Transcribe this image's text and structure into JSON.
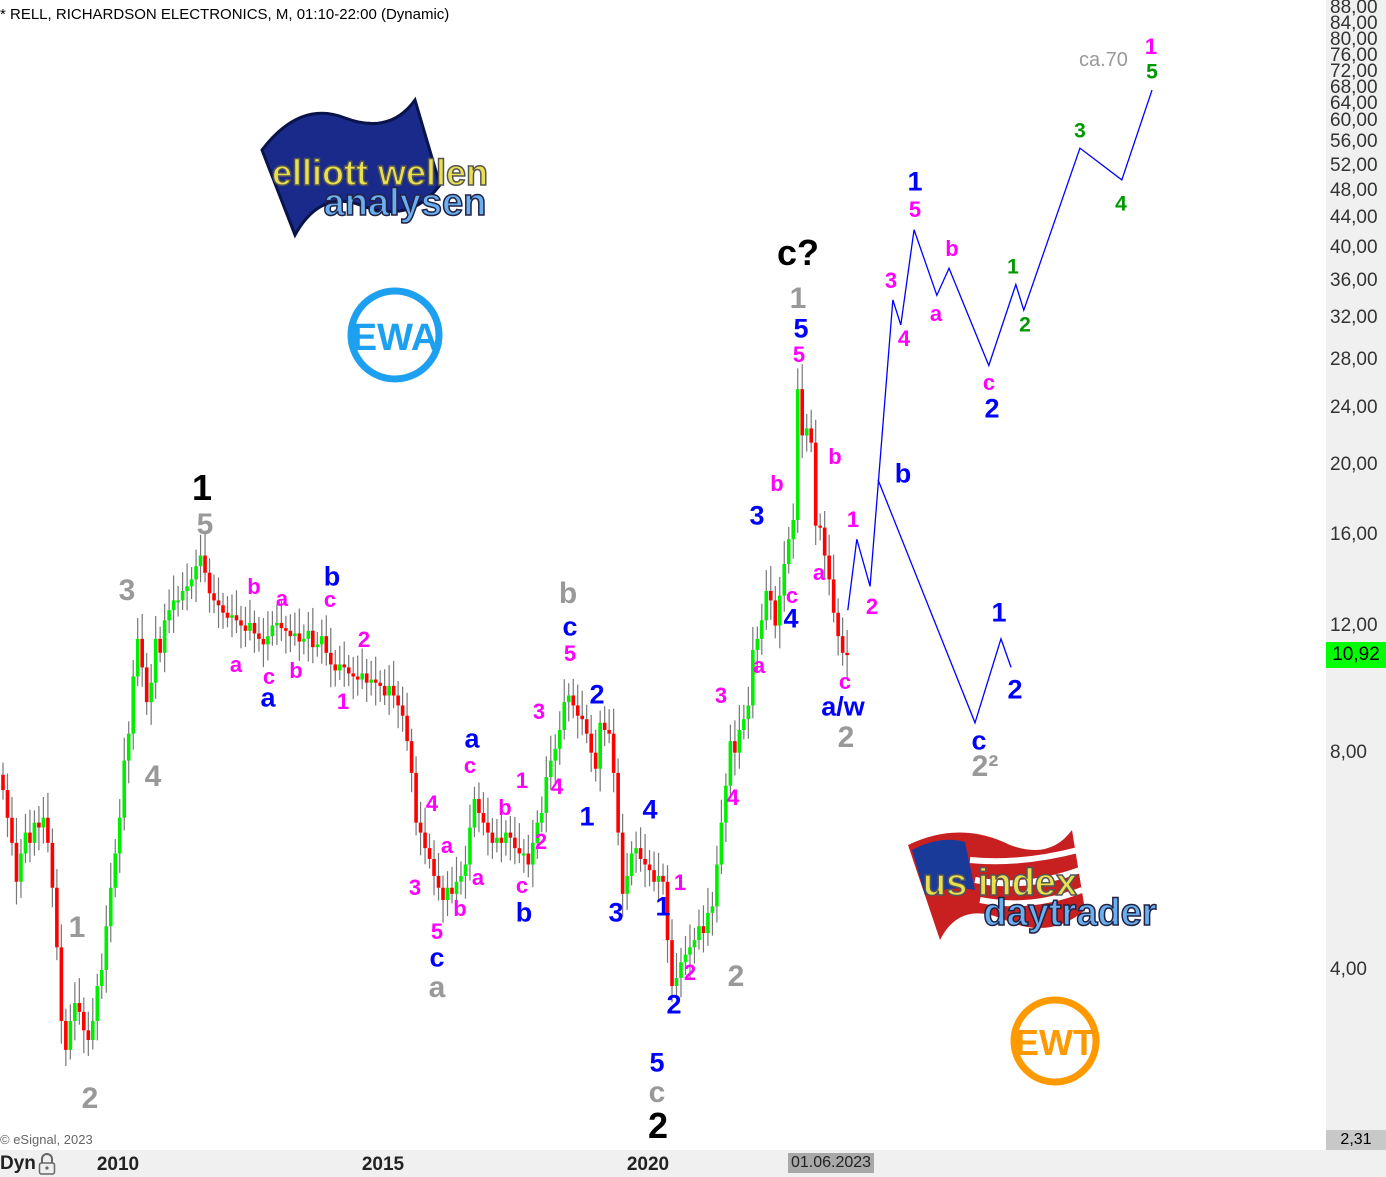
{
  "title": "* RELL, RICHARDSON ELECTRONICS, M, 01:10-22:00 (Dynamic)",
  "copyright": "© eSignal, 2023",
  "dyn_label": "Dyn",
  "current_date": "01.06.2023",
  "price_tag": {
    "value": "10,92",
    "color": "#00ff00"
  },
  "low_tag": {
    "value": "2,31",
    "color": "#c8c8c8"
  },
  "logos": {
    "elliott": "elliott wellen analysen",
    "ewa": "EWA",
    "us": "us index daytrader",
    "ewt": "EWT"
  },
  "colors": {
    "up": "#00ee00",
    "down": "#ff0000",
    "wick": "#777777",
    "projection": "#0000ff",
    "black": "#000000",
    "gray": "#999999",
    "blue": "#0000ff",
    "magenta": "#ff00ff",
    "green": "#009900"
  },
  "chart_data": {
    "type": "candlestick",
    "interval": "monthly",
    "y_scale": "log",
    "ylim": [
      2.31,
      88
    ],
    "start": "2007-10",
    "end": "2023-06",
    "x_ticks": [
      "2010",
      "2015",
      "2020"
    ],
    "y_ticks": [
      "88,00",
      "84,00",
      "80,00",
      "76,00",
      "72,00",
      "68,00",
      "64,00",
      "60,00",
      "56,00",
      "52,00",
      "48,00",
      "44,00",
      "40,00",
      "36,00",
      "32,00",
      "28,00",
      "24,00",
      "20,00",
      "16,00",
      "12,00",
      "8,00",
      "4,00"
    ],
    "closes": [
      7.1,
      6.5,
      6.0,
      5.3,
      5.8,
      6.2,
      6.0,
      6.4,
      6.3,
      6.5,
      6.0,
      5.2,
      4.3,
      3.4,
      3.1,
      3.4,
      3.6,
      3.5,
      3.3,
      3.2,
      3.4,
      3.8,
      4.0,
      4.6,
      5.2,
      5.8,
      6.5,
      7.8,
      8.5,
      10.2,
      11.5,
      10.5,
      9.4,
      10.0,
      11.5,
      11.0,
      12.2,
      12.6,
      13.0,
      13.0,
      13.4,
      13.6,
      13.9,
      14.5,
      15.0,
      14.2,
      13.3,
      13.0,
      12.8,
      12.5,
      12.3,
      12.4,
      12.2,
      12.0,
      11.8,
      12.1,
      11.7,
      11.5,
      11.3,
      11.6,
      12.0,
      12.1,
      11.9,
      11.8,
      11.6,
      11.7,
      11.4,
      11.5,
      11.8,
      11.2,
      11.3,
      11.6,
      11.0,
      10.6,
      10.4,
      10.6,
      10.5,
      10.3,
      10.2,
      10.1,
      10.3,
      10.0,
      10.1,
      10.0,
      9.9,
      9.6,
      9.9,
      9.6,
      9.3,
      9.0,
      8.3,
      7.5,
      6.4,
      6.2,
      5.9,
      5.7,
      5.4,
      5.2,
      5.0,
      5.2,
      5.1,
      5.3,
      5.4,
      5.6,
      6.3,
      6.9,
      6.6,
      6.4,
      6.2,
      6.0,
      6.1,
      6.0,
      6.2,
      6.1,
      5.9,
      5.8,
      5.8,
      5.6,
      6.0,
      6.4,
      6.6,
      7.4,
      7.8,
      8.1,
      8.6,
      9.4,
      9.6,
      9.3,
      9.0,
      8.9,
      8.5,
      8.0,
      7.6,
      8.8,
      8.6,
      8.5,
      7.5,
      6.2,
      5.1,
      5.4,
      5.8,
      5.9,
      5.7,
      5.6,
      5.5,
      5.3,
      5.4,
      5.3,
      4.4,
      3.8,
      3.9,
      4.1,
      4.2,
      4.3,
      4.4,
      4.6,
      4.5,
      4.8,
      4.9,
      5.6,
      6.4,
      7.2,
      8.3,
      8.0,
      8.6,
      8.9,
      9.3,
      11.1,
      11.5,
      12.2,
      13.4,
      13.0,
      12.0,
      13.2,
      14.6,
      15.8,
      16.8,
      25.5,
      22.0,
      22.5,
      21.5,
      16.5,
      16.4,
      15.0,
      13.9,
      12.5,
      11.6,
      11.0,
      10.92
    ],
    "projections": [
      {
        "points": [
          [
            2023.77,
            12.6
          ],
          [
            2023.94,
            15.8
          ],
          [
            2024.19,
            13.6
          ],
          [
            2024.62,
            33.9
          ],
          [
            2024.77,
            31.3
          ],
          [
            2025.02,
            42.4
          ],
          [
            2025.45,
            34.4
          ],
          [
            2025.68,
            37.5
          ],
          [
            2026.43,
            27.5
          ],
          [
            2026.94,
            35.6
          ],
          [
            2027.09,
            32.8
          ],
          [
            2028.15,
            55.0
          ],
          [
            2028.94,
            49.7
          ],
          [
            2029.51,
            66.2
          ]
        ]
      },
      {
        "points": [
          [
            2024.34,
            19.1
          ],
          [
            2026.17,
            8.8
          ],
          [
            2026.66,
            11.5
          ],
          [
            2026.85,
            10.5
          ]
        ]
      }
    ],
    "target_annotation": "ca.70",
    "wave_labels": [
      {
        "t": "1",
        "c": "black"
      },
      {
        "t": "c?",
        "c": "black"
      },
      {
        "t": "2",
        "c": "black"
      },
      {
        "t": "5",
        "c": "gray"
      },
      {
        "t": "3",
        "c": "gray"
      },
      {
        "t": "4",
        "c": "gray"
      },
      {
        "t": "1",
        "c": "gray"
      },
      {
        "t": "2",
        "c": "gray"
      },
      {
        "t": "b",
        "c": "gray"
      },
      {
        "t": "a",
        "c": "gray"
      },
      {
        "t": "1",
        "c": "gray"
      },
      {
        "t": "2",
        "c": "gray"
      },
      {
        "t": "2",
        "c": "gray"
      },
      {
        "t": "c",
        "c": "gray"
      },
      {
        "t": "2²",
        "c": "gray"
      },
      {
        "t": "b",
        "c": "blue"
      },
      {
        "t": "a",
        "c": "blue"
      },
      {
        "t": "a",
        "c": "blue"
      },
      {
        "t": "c",
        "c": "blue"
      },
      {
        "t": "b",
        "c": "blue"
      },
      {
        "t": "2",
        "c": "blue"
      },
      {
        "t": "1",
        "c": "blue"
      },
      {
        "t": "c",
        "c": "blue"
      },
      {
        "t": "3",
        "c": "blue"
      },
      {
        "t": "4",
        "c": "blue"
      },
      {
        "t": "1",
        "c": "blue"
      },
      {
        "t": "2",
        "c": "blue"
      },
      {
        "t": "5",
        "c": "blue"
      },
      {
        "t": "3",
        "c": "blue"
      },
      {
        "t": "4",
        "c": "blue"
      },
      {
        "t": "5",
        "c": "blue"
      },
      {
        "t": "a/w",
        "c": "blue"
      },
      {
        "t": "1",
        "c": "blue"
      },
      {
        "t": "2",
        "c": "blue"
      },
      {
        "t": "b",
        "c": "blue"
      },
      {
        "t": "c",
        "c": "blue"
      },
      {
        "t": "1",
        "c": "blue"
      },
      {
        "t": "2",
        "c": "blue"
      },
      {
        "t": "b",
        "c": "magenta"
      },
      {
        "t": "a",
        "c": "magenta"
      },
      {
        "t": "c",
        "c": "magenta"
      },
      {
        "t": "2",
        "c": "magenta"
      },
      {
        "t": "a",
        "c": "magenta"
      },
      {
        "t": "c",
        "c": "magenta"
      },
      {
        "t": "b",
        "c": "magenta"
      },
      {
        "t": "1",
        "c": "magenta"
      },
      {
        "t": "5",
        "c": "magenta"
      },
      {
        "t": "3",
        "c": "magenta"
      },
      {
        "t": "4",
        "c": "magenta"
      },
      {
        "t": "1",
        "c": "magenta"
      },
      {
        "t": "b",
        "c": "magenta"
      },
      {
        "t": "2",
        "c": "magenta"
      },
      {
        "t": "c",
        "c": "magenta"
      },
      {
        "t": "c",
        "c": "magenta"
      },
      {
        "t": "4",
        "c": "magenta"
      },
      {
        "t": "a",
        "c": "magenta"
      },
      {
        "t": "a",
        "c": "magenta"
      },
      {
        "t": "3",
        "c": "magenta"
      },
      {
        "t": "b",
        "c": "magenta"
      },
      {
        "t": "5",
        "c": "magenta"
      },
      {
        "t": "1",
        "c": "magenta"
      },
      {
        "t": "2",
        "c": "magenta"
      },
      {
        "t": "3",
        "c": "magenta"
      },
      {
        "t": "4",
        "c": "magenta"
      },
      {
        "t": "a",
        "c": "magenta"
      },
      {
        "t": "c",
        "c": "magenta"
      },
      {
        "t": "b",
        "c": "magenta"
      },
      {
        "t": "5",
        "c": "magenta"
      },
      {
        "t": "b",
        "c": "magenta"
      },
      {
        "t": "a",
        "c": "magenta"
      },
      {
        "t": "1",
        "c": "magenta"
      },
      {
        "t": "2",
        "c": "magenta"
      },
      {
        "t": "c",
        "c": "magenta"
      },
      {
        "t": "3",
        "c": "magenta"
      },
      {
        "t": "4",
        "c": "magenta"
      },
      {
        "t": "5",
        "c": "magenta"
      },
      {
        "t": "a",
        "c": "magenta"
      },
      {
        "t": "b",
        "c": "magenta"
      },
      {
        "t": "c",
        "c": "magenta"
      },
      {
        "t": "1",
        "c": "magenta"
      },
      {
        "t": "1",
        "c": "green"
      },
      {
        "t": "2",
        "c": "green"
      },
      {
        "t": "3",
        "c": "green"
      },
      {
        "t": "4",
        "c": "green"
      },
      {
        "t": "5",
        "c": "green"
      }
    ]
  }
}
